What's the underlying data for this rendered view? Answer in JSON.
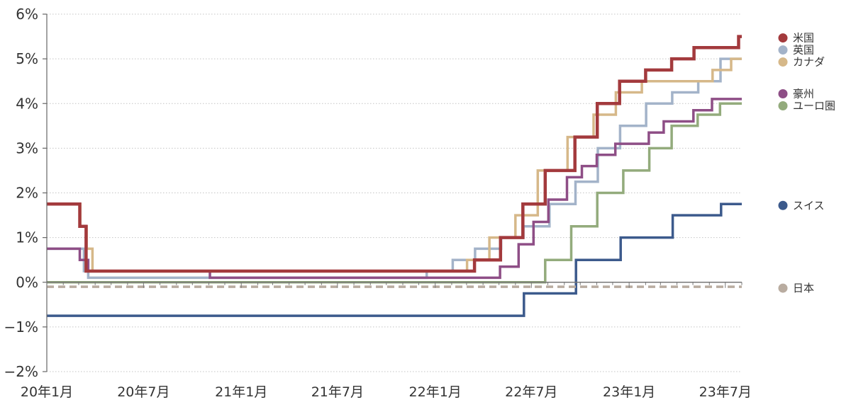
{
  "chart_data": {
    "type": "line",
    "title": "",
    "xlabel": "",
    "ylabel": "",
    "ylim": [
      -2,
      6
    ],
    "yticks": [
      {
        "v": 6,
        "label": "6%"
      },
      {
        "v": 5,
        "label": "5%"
      },
      {
        "v": 4,
        "label": "4%"
      },
      {
        "v": 3,
        "label": "3%"
      },
      {
        "v": 2,
        "label": "2%"
      },
      {
        "v": 1,
        "label": "1%"
      },
      {
        "v": 0,
        "label": "0%"
      },
      {
        "v": -1,
        "label": "−1%"
      },
      {
        "v": -2,
        "label": "−2%"
      }
    ],
    "xlim": [
      "2020-01-01",
      "2023-08-01"
    ],
    "xticks": [
      {
        "date": "2020-01-01",
        "label": "20年1月"
      },
      {
        "date": "2020-07-01",
        "label": "20年7月"
      },
      {
        "date": "2021-01-01",
        "label": "21年1月"
      },
      {
        "date": "2021-07-01",
        "label": "21年7月"
      },
      {
        "date": "2022-01-01",
        "label": "22年1月"
      },
      {
        "date": "2022-07-01",
        "label": "22年7月"
      },
      {
        "date": "2023-01-01",
        "label": "23年1月"
      },
      {
        "date": "2023-07-01",
        "label": "23年7月"
      }
    ],
    "grid": "horizontal dotted",
    "legend_position": "right",
    "series": [
      {
        "name": "スイス",
        "color": "#3c5a8c",
        "width": 3.5,
        "dash": false,
        "steps": [
          [
            "2020-01-01",
            -0.75
          ],
          [
            "2022-06-17",
            -0.25
          ],
          [
            "2022-09-23",
            0.5
          ],
          [
            "2022-12-16",
            1.0
          ],
          [
            "2023-03-24",
            1.5
          ],
          [
            "2023-06-23",
            1.75
          ]
        ]
      },
      {
        "name": "ユーロ圏",
        "color": "#93ab7c",
        "width": 3.5,
        "dash": false,
        "steps": [
          [
            "2020-01-01",
            0
          ],
          [
            "2022-07-27",
            0.5
          ],
          [
            "2022-09-14",
            1.25
          ],
          [
            "2022-11-02",
            2.0
          ],
          [
            "2022-12-21",
            2.5
          ],
          [
            "2023-02-08",
            3.0
          ],
          [
            "2023-03-22",
            3.5
          ],
          [
            "2023-05-10",
            3.75
          ],
          [
            "2023-06-21",
            4.0
          ]
        ]
      },
      {
        "name": "英国",
        "color": "#a3b3c9",
        "width": 3.5,
        "dash": false,
        "steps": [
          [
            "2020-01-01",
            0.75
          ],
          [
            "2020-03-11",
            0.25
          ],
          [
            "2020-03-19",
            0.1
          ],
          [
            "2021-12-16",
            0.25
          ],
          [
            "2022-02-03",
            0.5
          ],
          [
            "2022-03-17",
            0.75
          ],
          [
            "2022-05-05",
            1.0
          ],
          [
            "2022-06-16",
            1.25
          ],
          [
            "2022-08-04",
            1.75
          ],
          [
            "2022-09-22",
            2.25
          ],
          [
            "2022-11-03",
            3.0
          ],
          [
            "2022-12-15",
            3.5
          ],
          [
            "2023-02-02",
            4.0
          ],
          [
            "2023-03-23",
            4.25
          ],
          [
            "2023-05-11",
            4.5
          ],
          [
            "2023-06-22",
            5.0
          ]
        ]
      },
      {
        "name": "豪州",
        "color": "#8e4e86",
        "width": 3.5,
        "dash": false,
        "steps": [
          [
            "2020-01-01",
            0.75
          ],
          [
            "2020-03-03",
            0.5
          ],
          [
            "2020-03-19",
            0.25
          ],
          [
            "2020-11-03",
            0.1
          ],
          [
            "2022-05-03",
            0.35
          ],
          [
            "2022-06-07",
            0.85
          ],
          [
            "2022-07-05",
            1.35
          ],
          [
            "2022-08-02",
            1.85
          ],
          [
            "2022-09-06",
            2.35
          ],
          [
            "2022-10-04",
            2.6
          ],
          [
            "2022-11-01",
            2.85
          ],
          [
            "2022-12-06",
            3.1
          ],
          [
            "2023-02-07",
            3.35
          ],
          [
            "2023-03-07",
            3.6
          ],
          [
            "2023-05-02",
            3.85
          ],
          [
            "2023-06-06",
            4.1
          ]
        ]
      },
      {
        "name": "カナダ",
        "color": "#d6b889",
        "width": 3.5,
        "dash": false,
        "steps": [
          [
            "2020-01-01",
            1.75
          ],
          [
            "2020-03-04",
            1.25
          ],
          [
            "2020-03-16",
            0.75
          ],
          [
            "2020-03-27",
            0.25
          ],
          [
            "2022-03-02",
            0.5
          ],
          [
            "2022-04-13",
            1.0
          ],
          [
            "2022-06-01",
            1.5
          ],
          [
            "2022-07-13",
            2.5
          ],
          [
            "2022-09-07",
            3.25
          ],
          [
            "2022-10-26",
            3.75
          ],
          [
            "2022-12-07",
            4.25
          ],
          [
            "2023-01-25",
            4.5
          ],
          [
            "2023-06-07",
            4.75
          ],
          [
            "2023-07-12",
            5.0
          ]
        ]
      },
      {
        "name": "米国",
        "color": "#a33a3d",
        "width": 4.5,
        "dash": false,
        "steps": [
          [
            "2020-01-01",
            1.75
          ],
          [
            "2020-03-03",
            1.25
          ],
          [
            "2020-03-15",
            0.25
          ],
          [
            "2022-03-16",
            0.5
          ],
          [
            "2022-05-04",
            1.0
          ],
          [
            "2022-06-15",
            1.75
          ],
          [
            "2022-07-27",
            2.5
          ],
          [
            "2022-09-21",
            3.25
          ],
          [
            "2022-11-02",
            4.0
          ],
          [
            "2022-12-14",
            4.5
          ],
          [
            "2023-02-01",
            4.75
          ],
          [
            "2023-03-22",
            5.0
          ],
          [
            "2023-05-03",
            5.25
          ],
          [
            "2023-07-26",
            5.5
          ]
        ]
      },
      {
        "name": "日本",
        "color": "#b9aca0",
        "width": 3.5,
        "dash": true,
        "steps": [
          [
            "2020-01-01",
            -0.1
          ]
        ]
      }
    ]
  },
  "legend_groups": [
    {
      "anchor": 5.5,
      "gap": 17,
      "items": [
        "米国",
        "英国",
        "カナダ"
      ]
    },
    {
      "anchor": 4.25,
      "gap": 17,
      "items": [
        "豪州",
        "ユーロ圏"
      ]
    },
    {
      "anchor": 1.75,
      "gap": 17,
      "items": [
        "スイス"
      ]
    },
    {
      "anchor": -0.1,
      "gap": 17,
      "items": [
        "日本"
      ]
    }
  ]
}
